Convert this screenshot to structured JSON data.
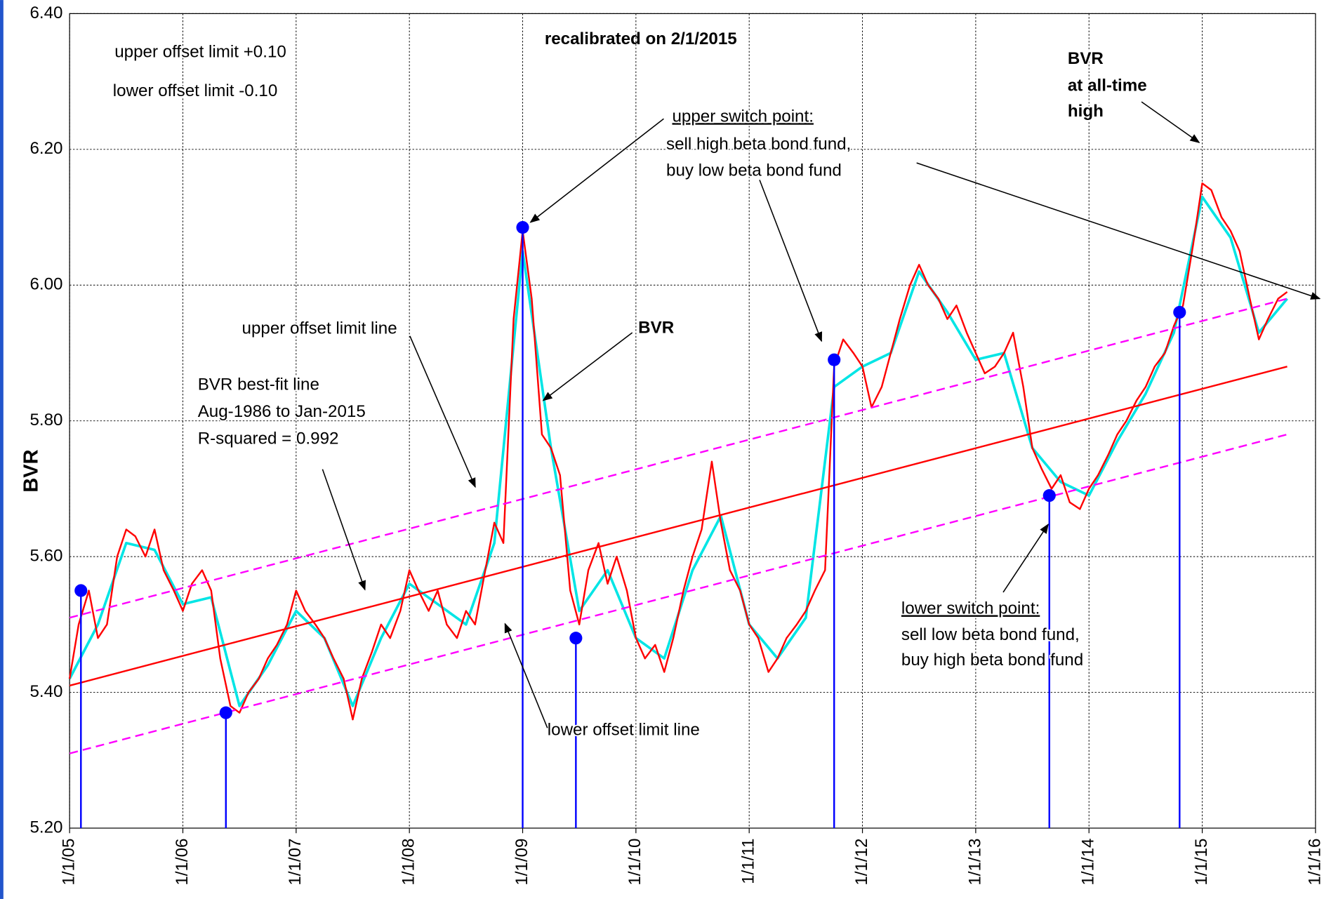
{
  "chart_data": {
    "type": "line",
    "subtitle": "recalibrated on 2/1/2015",
    "ylabel": "BVR",
    "xlim": [
      2005,
      2016
    ],
    "xticks": [
      {
        "value": 2005,
        "label": "1/1/05"
      },
      {
        "value": 2006,
        "label": "1/1/06"
      },
      {
        "value": 2007,
        "label": "1/1/07"
      },
      {
        "value": 2008,
        "label": "1/1/08"
      },
      {
        "value": 2009,
        "label": "1/1/09"
      },
      {
        "value": 2010,
        "label": "1/1/10"
      },
      {
        "value": 2011,
        "label": "1/1/11"
      },
      {
        "value": 2012,
        "label": "1/1/12"
      },
      {
        "value": 2013,
        "label": "1/1/13"
      },
      {
        "value": 2014,
        "label": "1/1/14"
      },
      {
        "value": 2015,
        "label": "1/1/15"
      },
      {
        "value": 2016,
        "label": "1/1/16"
      }
    ],
    "ylim": [
      5.2,
      6.4
    ],
    "yticks": [
      {
        "value": 5.2,
        "label": "5.20"
      },
      {
        "value": 5.4,
        "label": "5.40"
      },
      {
        "value": 5.6,
        "label": "5.60"
      },
      {
        "value": 5.8,
        "label": "5.80"
      },
      {
        "value": 6.0,
        "label": "6.00"
      },
      {
        "value": 6.2,
        "label": "6.20"
      },
      {
        "value": 6.4,
        "label": "6.40"
      }
    ],
    "grid": true,
    "series": [
      {
        "color": "#00e5e5",
        "dash": false,
        "x": [
          2005.0,
          2005.25,
          2005.5,
          2005.75,
          2006.0,
          2006.25,
          2006.5,
          2006.75,
          2007.0,
          2007.25,
          2007.5,
          2007.75,
          2008.0,
          2008.25,
          2008.5,
          2008.75,
          2009.0,
          2009.25,
          2009.5,
          2009.75,
          2010.0,
          2010.25,
          2010.5,
          2010.75,
          2011.0,
          2011.25,
          2011.5,
          2011.75,
          2012.0,
          2012.25,
          2012.5,
          2012.75,
          2013.0,
          2013.25,
          2013.5,
          2013.75,
          2014.0,
          2014.25,
          2014.5,
          2014.75,
          2015.0,
          2015.25,
          2015.5,
          2015.75
        ],
        "values": [
          5.42,
          5.5,
          5.62,
          5.61,
          5.53,
          5.54,
          5.38,
          5.44,
          5.52,
          5.48,
          5.38,
          5.48,
          5.56,
          5.53,
          5.5,
          5.62,
          6.05,
          5.76,
          5.52,
          5.58,
          5.48,
          5.45,
          5.58,
          5.66,
          5.5,
          5.45,
          5.51,
          5.85,
          5.88,
          5.9,
          6.02,
          5.96,
          5.89,
          5.9,
          5.76,
          5.71,
          5.69,
          5.77,
          5.84,
          5.93,
          6.13,
          6.07,
          5.93,
          5.98
        ]
      },
      {
        "color": "#ff0000",
        "dash": false,
        "x": [
          2005.0,
          2005.08,
          2005.17,
          2005.25,
          2005.33,
          2005.42,
          2005.5,
          2005.58,
          2005.67,
          2005.75,
          2005.83,
          2005.92,
          2006.0,
          2006.08,
          2006.17,
          2006.25,
          2006.33,
          2006.42,
          2006.5,
          2006.58,
          2006.67,
          2006.75,
          2006.83,
          2006.92,
          2007.0,
          2007.08,
          2007.17,
          2007.25,
          2007.33,
          2007.42,
          2007.5,
          2007.58,
          2007.67,
          2007.75,
          2007.83,
          2007.92,
          2008.0,
          2008.08,
          2008.17,
          2008.25,
          2008.33,
          2008.42,
          2008.5,
          2008.58,
          2008.67,
          2008.75,
          2008.83,
          2008.92,
          2009.0,
          2009.08,
          2009.17,
          2009.25,
          2009.33,
          2009.42,
          2009.5,
          2009.58,
          2009.67,
          2009.75,
          2009.83,
          2009.92,
          2010.0,
          2010.08,
          2010.17,
          2010.25,
          2010.33,
          2010.42,
          2010.5,
          2010.58,
          2010.67,
          2010.75,
          2010.83,
          2010.92,
          2011.0,
          2011.08,
          2011.17,
          2011.25,
          2011.33,
          2011.42,
          2011.5,
          2011.58,
          2011.67,
          2011.75,
          2011.83,
          2011.92,
          2012.0,
          2012.08,
          2012.17,
          2012.25,
          2012.33,
          2012.42,
          2012.5,
          2012.58,
          2012.67,
          2012.75,
          2012.83,
          2012.92,
          2013.0,
          2013.08,
          2013.17,
          2013.25,
          2013.33,
          2013.42,
          2013.5,
          2013.58,
          2013.67,
          2013.75,
          2013.83,
          2013.92,
          2014.0,
          2014.08,
          2014.17,
          2014.25,
          2014.33,
          2014.42,
          2014.5,
          2014.58,
          2014.67,
          2014.75,
          2014.83,
          2014.92,
          2015.0,
          2015.08,
          2015.17,
          2015.25,
          2015.33,
          2015.42,
          2015.5,
          2015.58,
          2015.67,
          2015.75
        ],
        "values": [
          5.42,
          5.5,
          5.55,
          5.48,
          5.5,
          5.6,
          5.64,
          5.63,
          5.6,
          5.64,
          5.58,
          5.55,
          5.52,
          5.56,
          5.58,
          5.55,
          5.45,
          5.38,
          5.37,
          5.4,
          5.42,
          5.45,
          5.47,
          5.5,
          5.55,
          5.52,
          5.5,
          5.48,
          5.45,
          5.42,
          5.36,
          5.42,
          5.46,
          5.5,
          5.48,
          5.52,
          5.58,
          5.55,
          5.52,
          5.55,
          5.5,
          5.48,
          5.52,
          5.5,
          5.58,
          5.65,
          5.62,
          5.95,
          6.08,
          5.98,
          5.78,
          5.76,
          5.72,
          5.55,
          5.5,
          5.58,
          5.62,
          5.56,
          5.6,
          5.55,
          5.48,
          5.45,
          5.47,
          5.43,
          5.48,
          5.55,
          5.6,
          5.64,
          5.74,
          5.65,
          5.58,
          5.55,
          5.5,
          5.48,
          5.43,
          5.45,
          5.48,
          5.5,
          5.52,
          5.55,
          5.58,
          5.88,
          5.92,
          5.9,
          5.88,
          5.82,
          5.85,
          5.9,
          5.95,
          6.0,
          6.03,
          6.0,
          5.98,
          5.95,
          5.97,
          5.93,
          5.9,
          5.87,
          5.88,
          5.9,
          5.93,
          5.85,
          5.76,
          5.73,
          5.7,
          5.72,
          5.68,
          5.67,
          5.7,
          5.72,
          5.75,
          5.78,
          5.8,
          5.83,
          5.85,
          5.88,
          5.9,
          5.94,
          5.97,
          6.06,
          6.15,
          6.14,
          6.1,
          6.08,
          6.05,
          5.98,
          5.92,
          5.95,
          5.98,
          5.99
        ]
      },
      {
        "color": "#ff0000",
        "dash": false,
        "x": [
          2005.0,
          2015.75
        ],
        "values": [
          5.41,
          5.88
        ]
      },
      {
        "color": "#ff00ff",
        "dash": true,
        "x": [
          2005.0,
          2015.75
        ],
        "values": [
          5.51,
          5.98
        ]
      },
      {
        "color": "#ff00ff",
        "dash": true,
        "x": [
          2005.0,
          2015.75
        ],
        "values": [
          5.31,
          5.78
        ]
      }
    ],
    "points": {
      "color": "#0000ff",
      "x": [
        2005.1,
        2006.38,
        2009.0,
        2009.47,
        2011.75,
        2013.65,
        2014.8
      ],
      "values": [
        5.55,
        5.37,
        6.085,
        5.48,
        5.89,
        5.69,
        5.96
      ]
    },
    "annotations": [
      "upper offset limit +0.10",
      "lower offset limit  -0.10",
      "upper switch point:",
      "sell high beta bond fund,",
      "buy low beta bond fund",
      "BVR",
      "at all-time",
      "high",
      "BVR",
      "upper offset limit line",
      "BVR best-fit line",
      "Aug-1986 to Jan-2015",
      "R-squared = 0.992",
      "lower offset limit line",
      "lower switch point:",
      "sell low beta bond fund,",
      "buy high beta bond fund"
    ]
  }
}
